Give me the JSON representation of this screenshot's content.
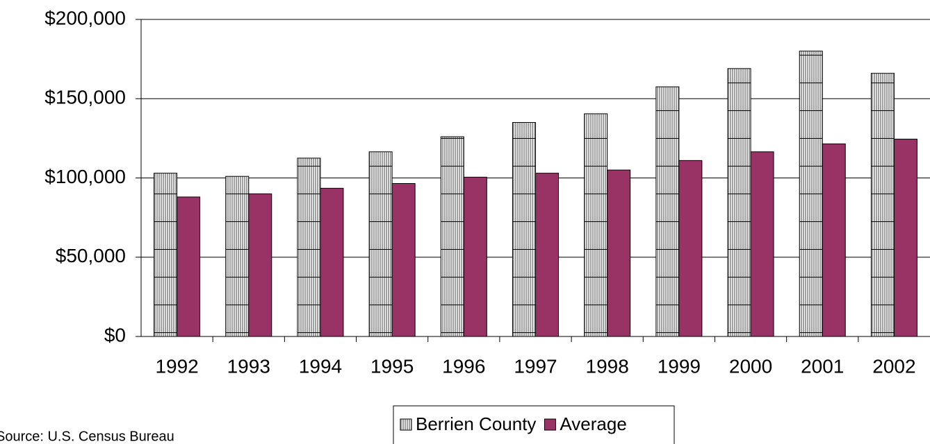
{
  "chart_data": {
    "type": "bar",
    "categories": [
      "1992",
      "1993",
      "1994",
      "1995",
      "1996",
      "1997",
      "1998",
      "1999",
      "2000",
      "2001",
      "2002"
    ],
    "series": [
      {
        "name": "Berrien County",
        "color": "#a0a0a0",
        "pattern": "vertical-stripes",
        "values": [
          103000,
          101000,
          112500,
          116500,
          126000,
          135000,
          140500,
          157500,
          169000,
          180000,
          166000
        ]
      },
      {
        "name": "Average",
        "color": "#993366",
        "values": [
          88000,
          90000,
          93500,
          96500,
          100500,
          103000,
          105000,
          111000,
          116500,
          121500,
          124500
        ]
      }
    ],
    "ylim": [
      0,
      200000
    ],
    "yticks": [
      {
        "value": 0,
        "label": "$0"
      },
      {
        "value": 50000,
        "label": "$50,000"
      },
      {
        "value": 100000,
        "label": "$100,000"
      },
      {
        "value": 150000,
        "label": "$150,000"
      },
      {
        "value": 200000,
        "label": "$200,000"
      }
    ],
    "grid": true,
    "legend": "bottom",
    "source": "Source: U.S. Census Bureau"
  }
}
